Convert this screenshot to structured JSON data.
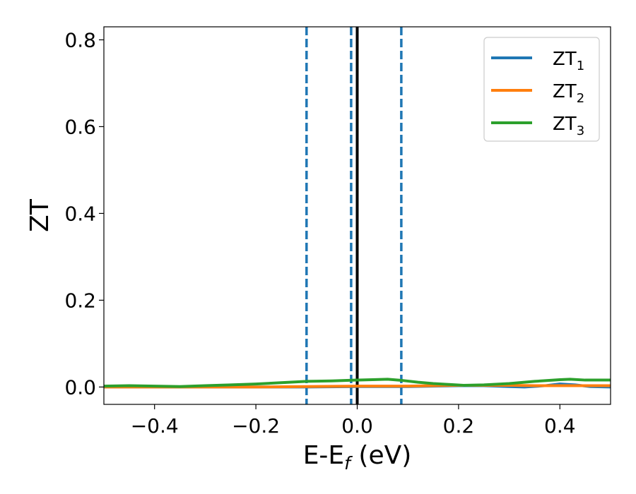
{
  "chart_data": {
    "type": "line",
    "title": "",
    "xlabel": {
      "main": "E-E",
      "sub": "f",
      "unit": " (eV)"
    },
    "ylabel": "ZT",
    "xlim": [
      -0.5,
      0.5
    ],
    "ylim": [
      -0.04,
      0.83
    ],
    "xticks": [
      -0.4,
      -0.2,
      0.0,
      0.2,
      0.4
    ],
    "xtick_labels": [
      "−0.4",
      "−0.2",
      "0.0",
      "0.2",
      "0.4"
    ],
    "yticks": [
      0.0,
      0.2,
      0.4,
      0.6,
      0.8
    ],
    "ytick_labels": [
      "0.0",
      "0.2",
      "0.4",
      "0.6",
      "0.8"
    ],
    "grid": false,
    "legend_position": "top-right",
    "series": [
      {
        "name": "ZT",
        "sub": "1",
        "color": "#1f77b4",
        "x": [
          -0.5,
          -0.4,
          -0.3,
          -0.2,
          -0.1,
          0.0,
          0.05,
          0.1,
          0.15,
          0.2,
          0.25,
          0.3,
          0.33,
          0.37,
          0.4,
          0.43,
          0.46,
          0.5
        ],
        "y": [
          0.0,
          0.0,
          0.0,
          0.0,
          0.0,
          0.001,
          0.001,
          0.001,
          0.002,
          0.003,
          0.003,
          0.001,
          0.0,
          0.003,
          0.007,
          0.005,
          0.001,
          0.0
        ]
      },
      {
        "name": "ZT",
        "sub": "2",
        "color": "#ff7f0e",
        "x": [
          -0.5,
          -0.4,
          -0.3,
          -0.2,
          -0.1,
          0.0,
          0.05,
          0.1,
          0.15,
          0.2,
          0.25,
          0.3,
          0.35,
          0.4,
          0.45,
          0.5
        ],
        "y": [
          0.0,
          0.0,
          0.0,
          0.0,
          0.001,
          0.002,
          0.002,
          0.002,
          0.003,
          0.004,
          0.004,
          0.004,
          0.003,
          0.003,
          0.003,
          0.003
        ]
      },
      {
        "name": "ZT",
        "sub": "3",
        "color": "#2ca02c",
        "x": [
          -0.5,
          -0.45,
          -0.4,
          -0.35,
          -0.3,
          -0.25,
          -0.2,
          -0.15,
          -0.1,
          -0.05,
          0.0,
          0.03,
          0.06,
          0.09,
          0.12,
          0.15,
          0.18,
          0.21,
          0.25,
          0.3,
          0.35,
          0.4,
          0.42,
          0.45,
          0.5
        ],
        "y": [
          0.002,
          0.003,
          0.002,
          0.001,
          0.003,
          0.005,
          0.007,
          0.01,
          0.013,
          0.014,
          0.016,
          0.017,
          0.018,
          0.015,
          0.011,
          0.008,
          0.006,
          0.004,
          0.005,
          0.008,
          0.013,
          0.017,
          0.018,
          0.016,
          0.016
        ]
      }
    ],
    "vertical_lines": [
      {
        "x": -0.1,
        "style": "dashed",
        "color": "#1f77b4"
      },
      {
        "x": -0.012,
        "style": "dashed",
        "color": "#1f77b4"
      },
      {
        "x": 0.0,
        "style": "solid",
        "color": "#000000"
      },
      {
        "x": 0.087,
        "style": "dashed",
        "color": "#1f77b4"
      }
    ]
  }
}
